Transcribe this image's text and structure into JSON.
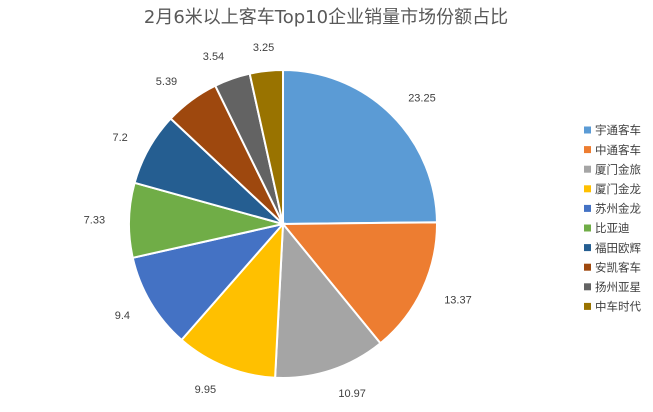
{
  "chart_data": {
    "type": "pie",
    "title": "2月6米以上客车Top10企业销量市场份额占比",
    "legend_position": "right",
    "start_angle_deg": 0,
    "direction": "clockwise",
    "slices": [
      {
        "label": "宇通客车",
        "value": 23.25,
        "value_text": "23.25",
        "color": "#5B9BD5"
      },
      {
        "label": "中通客车",
        "value": 13.37,
        "value_text": "13.37",
        "color": "#ED7D31"
      },
      {
        "label": "厦门金旅",
        "value": 10.97,
        "value_text": "10.97",
        "color": "#A5A5A5"
      },
      {
        "label": "厦门金龙",
        "value": 9.95,
        "value_text": "9.95",
        "color": "#FFC000"
      },
      {
        "label": "苏州金龙",
        "value": 9.4,
        "value_text": "9.4",
        "color": "#4472C4"
      },
      {
        "label": "比亚迪",
        "value": 7.33,
        "value_text": "7.33",
        "color": "#70AD47"
      },
      {
        "label": "福田欧辉",
        "value": 7.2,
        "value_text": "7.2",
        "color": "#255E91"
      },
      {
        "label": "安凯客车",
        "value": 5.39,
        "value_text": "5.39",
        "color": "#9E480E"
      },
      {
        "label": "扬州亚星",
        "value": 3.54,
        "value_text": "3.54",
        "color": "#636363"
      },
      {
        "label": "中车时代",
        "value": 3.25,
        "value_text": "3.25",
        "color": "#997300"
      }
    ]
  }
}
